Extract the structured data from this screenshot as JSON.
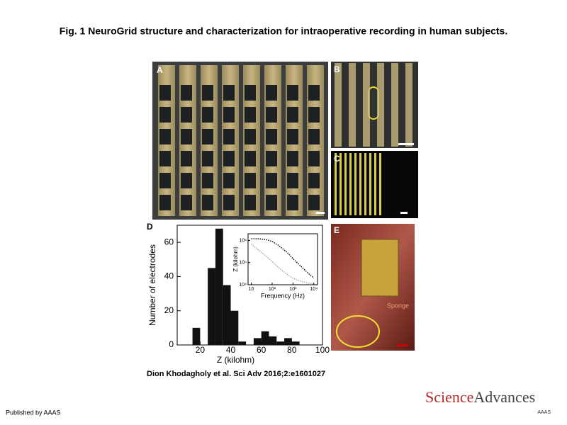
{
  "title": "Fig. 1 NeuroGrid structure and characterization for intraoperative recording in human subjects.",
  "panels": {
    "a": "A",
    "b": "B",
    "c": "C",
    "d": "D",
    "e": "E"
  },
  "sponge_label": "Sponge",
  "chart_data": {
    "type": "histogram",
    "bins": [
      15,
      20,
      25,
      30,
      35,
      40,
      45,
      50,
      55,
      60,
      65,
      70,
      75,
      80,
      85
    ],
    "values": [
      10,
      0,
      45,
      68,
      35,
      20,
      2,
      0,
      4,
      8,
      5,
      2,
      4,
      2
    ],
    "color": "#111111",
    "xlabel": "Z (kilohm)",
    "ylabel": "Number of electrodes",
    "xlim": [
      5,
      100
    ],
    "xticks": [
      20,
      40,
      60,
      80,
      100
    ],
    "ylim": [
      0,
      70
    ],
    "yticks": [
      0,
      20,
      40,
      60
    ],
    "inset": {
      "type": "line",
      "log_x": true,
      "log_y": true,
      "xlabel": "Frequency (Hz)",
      "ylabel": "Z (kilohm)",
      "x": [
        10,
        20,
        50,
        100,
        200,
        500,
        1000,
        2000,
        5000,
        10000
      ],
      "series": [
        {
          "color": "#111111",
          "values": [
            1200000,
            1200000,
            1100000,
            900000,
            600000,
            300000,
            150000,
            80000,
            35000,
            20000
          ]
        },
        {
          "color": "#aaaaaa",
          "values": [
            700000,
            400000,
            200000,
            110000,
            60000,
            30000,
            20000,
            15000,
            12000,
            11000
          ]
        }
      ],
      "xlim": [
        7,
        15000
      ],
      "xticks": [
        {
          "value": 10,
          "label": "10"
        },
        {
          "value": 100,
          "label": "10²"
        },
        {
          "value": 1000,
          "label": "10³"
        },
        {
          "value": 10000,
          "label": "10⁴"
        }
      ],
      "ylim": [
        10000,
        2000000
      ],
      "yticks": [
        {
          "value": 10000,
          "label": "10⁴"
        },
        {
          "value": 100000,
          "label": "10⁵"
        },
        {
          "value": 1000000,
          "label": "10⁶"
        }
      ]
    }
  },
  "citation": "Dion Khodagholy et al. Sci Adv 2016;2:e1601027",
  "logo": {
    "science": "Science",
    "advances": "Advances",
    "aaas": "AAAS"
  },
  "footer": "Published by AAAS"
}
